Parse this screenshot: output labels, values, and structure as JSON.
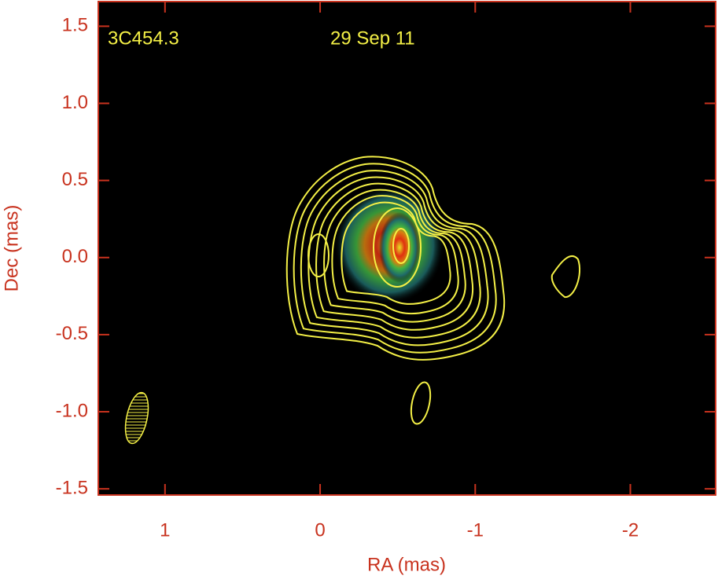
{
  "chart_data": {
    "type": "contour-map",
    "title": "3C454.3",
    "subtitle": "29 Sep 11",
    "x_label": "RA (mas)",
    "y_label": "Dec (mas)",
    "xlim": [
      1.43,
      -2.55
    ],
    "xticks": [
      1,
      0,
      -1,
      -2
    ],
    "ylim": [
      -1.54,
      1.66
    ],
    "yticks": [
      1.5,
      {
        "value": 1,
        "label": "1.0"
      },
      0.5,
      {
        "value": 0,
        "label": "0.0"
      },
      -0.5,
      {
        "value": -1,
        "label": "-1.0"
      },
      -1.5
    ],
    "axis_color": "#c8321e",
    "contour_color": "#f4f046",
    "background": "#000000"
  }
}
